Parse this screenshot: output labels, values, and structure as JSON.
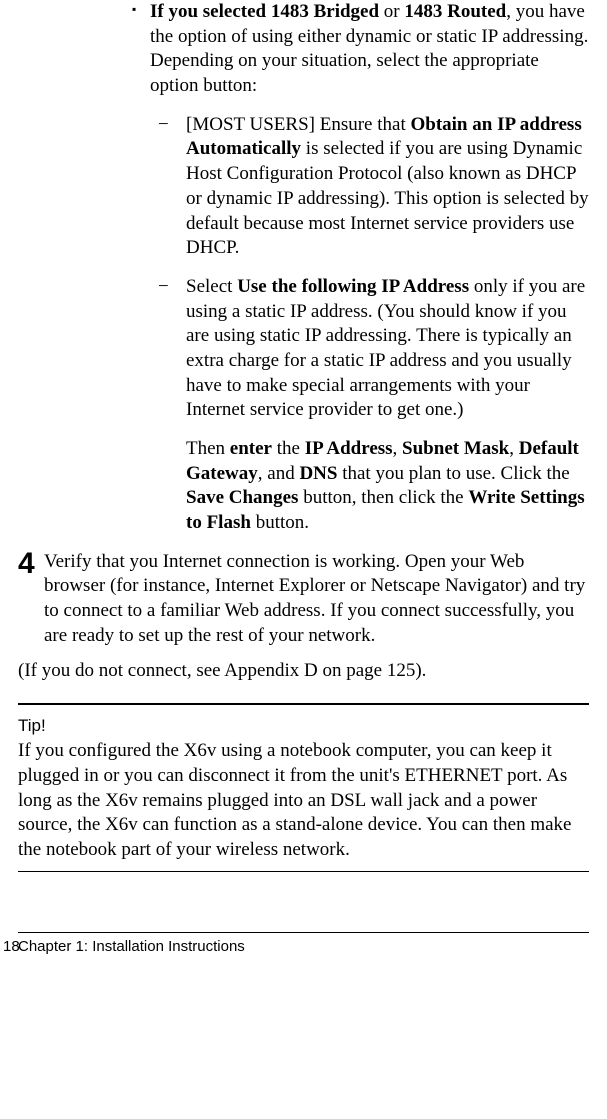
{
  "bullet": {
    "intro_bold1": "If you selected 1483 Bridged",
    "intro_mid": " or ",
    "intro_bold2": "1483 Routed",
    "intro_rest": ", you have the option of using either dynamic or static IP addressing. Depending on your situation, select the appropriate option button:"
  },
  "dash1": {
    "pre": "[MOST USERS] Ensure that ",
    "bold": "Obtain an IP address Automatically",
    "post": " is selected if you are using Dynamic Host Configuration Protocol (also known as DHCP or dynamic IP addressing). This option is selected by default because most Internet service providers use DHCP."
  },
  "dash2": {
    "pre": "Select ",
    "bold": "Use the following IP Address",
    "post": " only if you are using a static IP address. (You should know if you are using static IP addressing. There is typically an extra charge for a static IP address and you usually have to make special arrangements with your Internet service provider to get one.)"
  },
  "dash3": {
    "t1": "Then ",
    "b1": "enter",
    "t2": " the ",
    "b2": "IP Address",
    "t3": ", ",
    "b3": "Subnet Mask",
    "t4": ", ",
    "b4": "Default Gateway",
    "t5": ", and ",
    "b5": "DNS",
    "t6": " that you plan to use. Click the ",
    "b6": "Save Changes",
    "t7": " button, then click the ",
    "b7": "Write Settings to Flash",
    "t8": " button."
  },
  "step4": {
    "num": "4",
    "text": "Verify that you Internet connection is working. Open your Web browser (for instance, Internet Explorer or Netscape Navigator) and try to connect to a familiar Web address. If you connect successfully, you are ready to set up the rest of your network."
  },
  "note": " (If you do not connect, see Appendix D on page 125).",
  "tip": {
    "heading": "Tip!",
    "body": "If you configured the X6v using a notebook computer, you can keep it plugged in or you can disconnect it from the unit's ETHERNET port. As long as the X6v remains plugged into an DSL wall jack and a power source, the X6v can function as a stand-alone device. You can then make the notebook part of your wireless network."
  },
  "footer": {
    "pagenum": "18",
    "chapter": "Chapter 1: Installation Instructions"
  }
}
